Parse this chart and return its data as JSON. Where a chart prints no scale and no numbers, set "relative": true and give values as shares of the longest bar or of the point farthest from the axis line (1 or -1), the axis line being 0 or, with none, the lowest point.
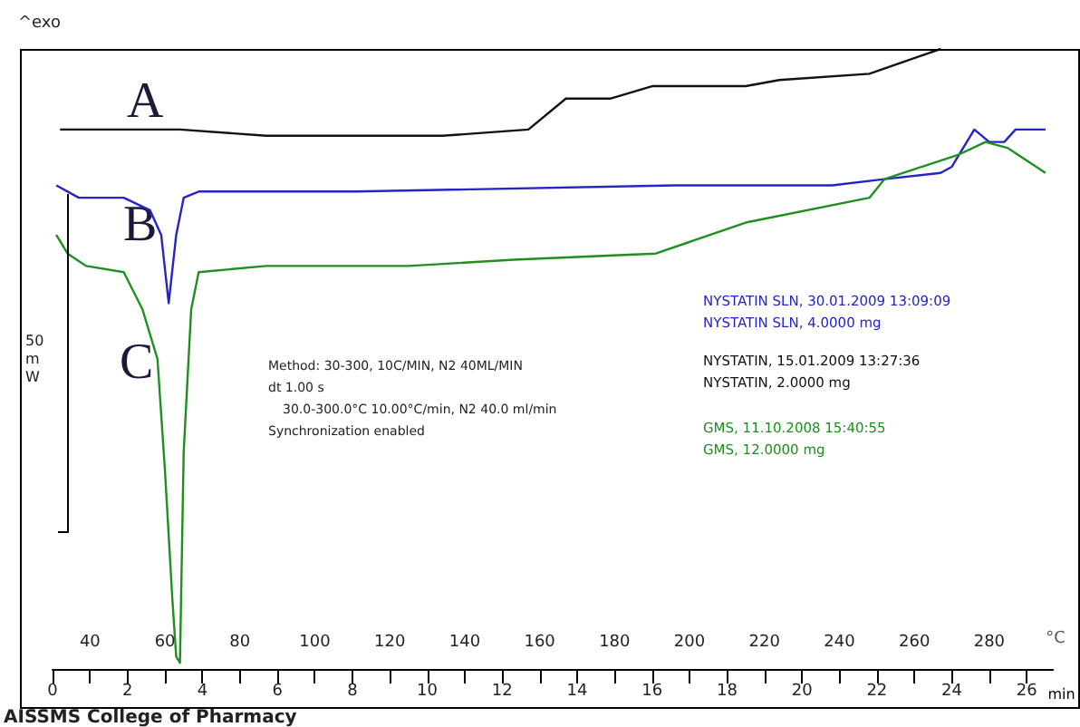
{
  "chart_data": {
    "type": "line",
    "relative": true,
    "xlabel": "°C",
    "x2label": "min",
    "xlim": [
      30,
      297
    ],
    "xticks": [
      40,
      60,
      80,
      100,
      120,
      140,
      160,
      180,
      200,
      220,
      240,
      260,
      280
    ],
    "x2lim": [
      0,
      26.7
    ],
    "x2ticks": [
      0,
      {
        "value": 1,
        "label": null
      },
      2,
      {
        "value": 3,
        "label": null
      },
      4,
      {
        "value": 5,
        "label": null
      },
      6,
      {
        "value": 7,
        "label": null
      },
      8,
      {
        "value": 9,
        "label": null
      },
      10,
      {
        "value": 11,
        "label": null
      },
      12,
      {
        "value": 13,
        "label": null
      },
      14,
      {
        "value": 15,
        "label": null
      },
      16,
      {
        "value": 17,
        "label": null
      },
      18,
      {
        "value": 19,
        "label": null
      },
      20,
      {
        "value": 21,
        "label": null
      },
      22,
      {
        "value": 23,
        "label": null
      },
      24,
      {
        "value": 25,
        "label": null
      },
      26
    ],
    "series": [
      {
        "name": "NYSTATIN, 15.01.2009 13:27:36\nNYSTATIN, 2.0000 mg",
        "color": "#111111",
        "x": [
          32,
          37,
          64,
          87,
          101,
          109,
          134,
          157,
          167,
          179,
          190,
          199,
          215,
          224,
          248,
          267
        ],
        "values": [
          0.87,
          0.87,
          0.87,
          0.86,
          0.86,
          0.86,
          0.86,
          0.87,
          0.92,
          0.92,
          0.94,
          0.94,
          0.94,
          0.95,
          0.96,
          1.0
        ]
      },
      {
        "name": "NYSTATIN SLN, 30.01.2009 13:09:09\nNYSTATIN SLN, 4.0000 mg",
        "color": "#2424c8",
        "x": [
          31,
          37,
          49,
          56,
          59,
          61,
          63,
          65,
          69,
          111,
          196,
          238,
          252,
          267,
          270,
          276,
          280,
          284,
          287,
          290,
          295
        ],
        "values": [
          0.78,
          0.76,
          0.76,
          0.74,
          0.7,
          0.59,
          0.7,
          0.76,
          0.77,
          0.77,
          0.78,
          0.78,
          0.79,
          0.8,
          0.81,
          0.87,
          0.85,
          0.85,
          0.87,
          0.87,
          0.87
        ]
      },
      {
        "name": "GMS, 11.10.2008 15:40:55\nGMS, 12.0000 mg",
        "color": "#1f8f1f",
        "x": [
          31,
          34,
          39,
          49,
          54,
          58,
          60,
          62,
          63,
          64,
          65,
          67,
          69,
          87,
          125,
          153,
          191,
          215,
          248,
          252,
          272,
          279,
          285,
          295
        ],
        "values": [
          0.7,
          0.67,
          0.65,
          0.64,
          0.58,
          0.5,
          0.32,
          0.11,
          0.02,
          0.01,
          0.35,
          0.58,
          0.64,
          0.65,
          0.65,
          0.66,
          0.67,
          0.72,
          0.76,
          0.79,
          0.83,
          0.85,
          0.84,
          0.8
        ]
      }
    ],
    "annotations": [
      "^exo",
      "50 mW",
      "Method: 30-300, 10C/MIN, N2 40ML/MIN",
      "dt 1.00 s",
      "30.0-300.0°C 10.00°C/min, N2 40.0 ml/min",
      "Synchronization enabled",
      "AISSMS College of Pharmacy",
      "A",
      "B",
      "C"
    ]
  }
}
